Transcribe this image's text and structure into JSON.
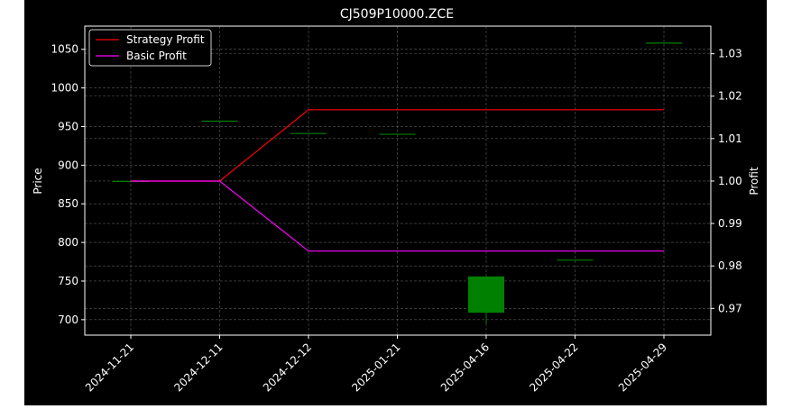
{
  "chart_data": {
    "type": "candlestick-line",
    "title": "CJ509P10000.ZCE",
    "ylabel_left": "Price",
    "ylabel_right": "Profit",
    "categories": [
      "2024-11-21",
      "2024-12-11",
      "2024-12-12",
      "2025-01-21",
      "2025-04-16",
      "2025-04-22",
      "2025-04-29"
    ],
    "ylim_left": [
      680,
      1080
    ],
    "ylim_right": [
      0.9637,
      1.0365
    ],
    "yticks_left": [
      700,
      750,
      800,
      850,
      900,
      950,
      1000,
      1050
    ],
    "yticks_right": [
      0.97,
      0.98,
      0.99,
      1.0,
      1.01,
      1.02,
      1.03
    ],
    "yticks_right_labels": [
      "0.97",
      "0.98",
      "0.99",
      "1.00",
      "1.01",
      "1.02",
      "1.03"
    ],
    "candles": [
      {
        "date": "2024-11-21",
        "open": 879,
        "high": 879,
        "low": 879,
        "close": 879
      },
      {
        "date": "2024-12-11",
        "open": 957,
        "high": 957,
        "low": 957,
        "close": 957
      },
      {
        "date": "2024-12-12",
        "open": 941,
        "high": 941,
        "low": 941,
        "close": 941
      },
      {
        "date": "2025-01-21",
        "open": 940,
        "high": 940,
        "low": 940,
        "close": 940
      },
      {
        "date": "2025-04-16",
        "open": 709,
        "high": 756,
        "low": 695,
        "close": 756
      },
      {
        "date": "2025-04-22",
        "open": 777,
        "high": 777,
        "low": 777,
        "close": 777
      },
      {
        "date": "2025-04-29",
        "open": 1058,
        "high": 1058,
        "low": 1058,
        "close": 1058
      }
    ],
    "series": [
      {
        "name": "Strategy Profit",
        "color": "#ff0000",
        "values": [
          1.0,
          1.0,
          1.0168,
          1.0168,
          1.0168,
          1.0168,
          1.0168
        ]
      },
      {
        "name": "Basic Profit",
        "color": "#ff00ff",
        "values": [
          1.0,
          1.0,
          0.9835,
          0.9835,
          0.9835,
          0.9835,
          0.9835
        ]
      }
    ],
    "legend_position": "top-left",
    "grid": true,
    "colors": {
      "background": "#000000",
      "axes": "#ffffff",
      "grid": "#808080",
      "up": "#008000",
      "down": "#ff0000"
    }
  }
}
